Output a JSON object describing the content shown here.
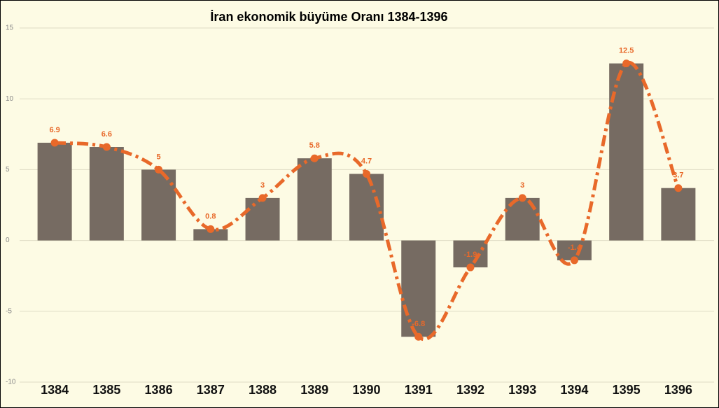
{
  "chart_data": {
    "type": "bar",
    "title": "İran ekonomik büyüme Oranı 1384-1396",
    "categories": [
      "1384",
      "1385",
      "1386",
      "1387",
      "1388",
      "1389",
      "1390",
      "1391",
      "1392",
      "1393",
      "1394",
      "1395",
      "1396"
    ],
    "values": [
      6.9,
      6.6,
      5,
      0.8,
      3,
      5.8,
      4.7,
      -6.8,
      -1.9,
      3,
      -1.4,
      12.5,
      3.7
    ],
    "color": "#766b62",
    "line_color": "#e8692a",
    "ylim": [
      -10,
      15
    ],
    "yticks": [
      -10,
      -5,
      0,
      5,
      10,
      15
    ],
    "grid": true
  }
}
